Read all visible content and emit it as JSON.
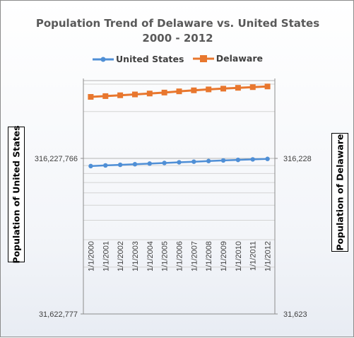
{
  "chart_data": {
    "type": "line",
    "title_line1": "Population Trend of Delaware vs. United States",
    "title_line2": "2000 - 2012",
    "categories": [
      "1/1/2000",
      "1/1/2001",
      "1/1/2002",
      "1/1/2003",
      "1/1/2004",
      "1/1/2005",
      "1/1/2006",
      "1/1/2007",
      "1/1/2008",
      "1/1/2009",
      "1/1/2010",
      "1/1/2011",
      "1/1/2012"
    ],
    "ylabel_left": "Population of United States",
    "ylabel_right": "Population of Delaware",
    "left_axis": {
      "scale": "log",
      "ylim": [
        31622777,
        1000000000
      ],
      "tick_labels": [
        "316,227,766",
        "31,622,777"
      ]
    },
    "right_axis": {
      "scale": "log",
      "ylim": [
        31623,
        1000000
      ],
      "tick_labels": [
        "316,228",
        "31,623"
      ]
    },
    "series": [
      {
        "name": "United States",
        "axis": "left",
        "color": "#4f8fd6",
        "values": [
          282200000,
          285000000,
          287600000,
          290100000,
          292800000,
          295500000,
          298400000,
          301200000,
          304100000,
          306800000,
          309300000,
          311600000,
          313900000
        ]
      },
      {
        "name": "Delaware",
        "axis": "right",
        "color": "#e8772e",
        "values": [
          786000,
          795000,
          805000,
          815000,
          826000,
          838000,
          853000,
          866000,
          878000,
          888000,
          899000,
          908000,
          917000
        ]
      }
    ],
    "legend_position": "top",
    "grid": true
  }
}
